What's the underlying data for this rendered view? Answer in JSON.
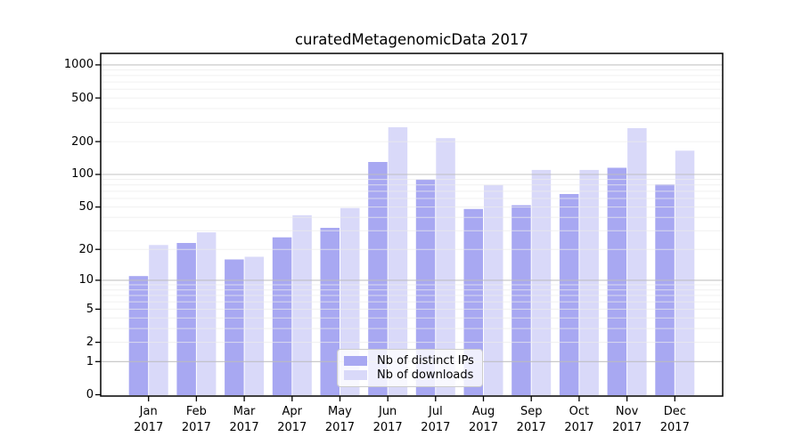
{
  "chart_data": {
    "type": "bar",
    "title": "curatedMetagenomicData 2017",
    "categories": [
      "Jan 2017",
      "Feb 2017",
      "Mar 2017",
      "Apr 2017",
      "May 2017",
      "Jun 2017",
      "Jul 2017",
      "Aug 2017",
      "Sep 2017",
      "Oct 2017",
      "Nov 2017",
      "Dec 2017"
    ],
    "series": [
      {
        "name": "Nb of distinct IPs",
        "color": "#a8a8f2",
        "values": [
          11,
          23,
          16,
          26,
          32,
          130,
          90,
          48,
          52,
          66,
          115,
          81
        ]
      },
      {
        "name": "Nb of downloads",
        "color": "#d9d9f9",
        "values": [
          22,
          29,
          17,
          42,
          49,
          270,
          215,
          80,
          110,
          110,
          265,
          165
        ]
      }
    ],
    "xlabel": "",
    "ylabel": "",
    "y_scale": "log1p",
    "yticks": [
      0,
      1,
      2,
      5,
      10,
      20,
      50,
      100,
      200,
      500,
      1000
    ],
    "ylim": [
      0,
      1280
    ],
    "grid": "on",
    "legend_position": "lower center"
  },
  "colors": {
    "background": "#ffffff",
    "spine": "#000000",
    "grid_major": "#bdbdbd",
    "grid_minor": "#ebebeb",
    "tick_text": "#000000",
    "legend_border": "#cccccc",
    "legend_background": "rgba(255,255,255,0.82)"
  }
}
